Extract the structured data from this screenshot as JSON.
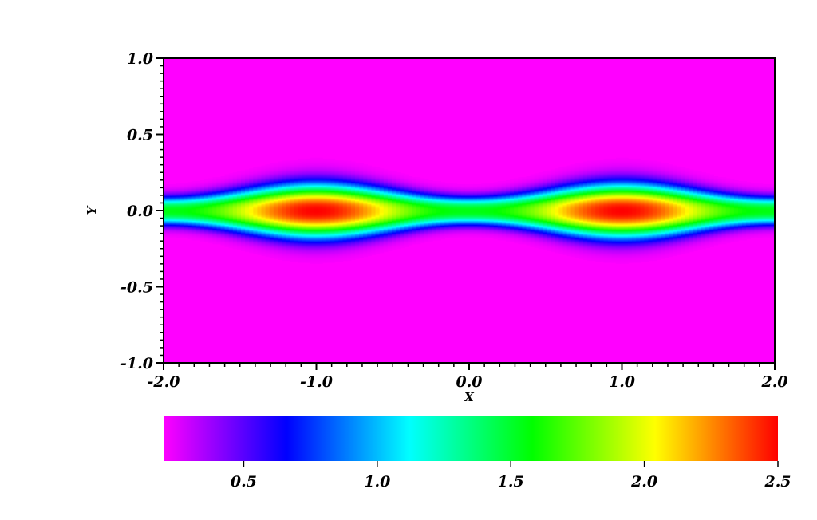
{
  "chart_data": {
    "type": "heatmap",
    "title": "",
    "xlabel": "X",
    "ylabel": "Y",
    "xlim": [
      -2.0,
      2.0
    ],
    "ylim": [
      -1.0,
      1.0
    ],
    "x_ticks": [
      {
        "value": -2.0,
        "label": "-2.0"
      },
      {
        "value": -1.0,
        "label": "-1.0"
      },
      {
        "value": 0.0,
        "label": "0.0"
      },
      {
        "value": 1.0,
        "label": "1.0"
      },
      {
        "value": 2.0,
        "label": "2.0"
      }
    ],
    "y_ticks": [
      {
        "value": 1.0,
        "label": "1.0"
      },
      {
        "value": 0.5,
        "label": "0.5"
      },
      {
        "value": 0.0,
        "label": "0.0"
      },
      {
        "value": -0.5,
        "label": "-0.5"
      },
      {
        "value": -1.0,
        "label": "-1.0"
      }
    ],
    "colorbar": {
      "orientation": "horizontal",
      "range": [
        0.2,
        2.5
      ],
      "ticks": [
        {
          "value": 0.5,
          "label": "0.5"
        },
        {
          "value": 1.0,
          "label": "1.0"
        },
        {
          "value": 1.5,
          "label": "1.5"
        },
        {
          "value": 2.0,
          "label": "2.0"
        },
        {
          "value": 2.5,
          "label": "2.5"
        }
      ],
      "colors": [
        "#ff00ff",
        "#0000ff",
        "#00ffff",
        "#00ff00",
        "#ffff00",
        "#ff0000"
      ]
    },
    "field": {
      "description_free": true,
      "background_value": 0.2,
      "peak_value": 2.5,
      "peak_x": [
        -1.0,
        1.0
      ],
      "waist_x": [
        -2.0,
        0.0,
        2.0
      ],
      "band_halfwidth_at_peak": 0.17,
      "band_halfwidth_at_waist": 0.09
    },
    "grid": false,
    "legend": "colorbar-bottom"
  }
}
